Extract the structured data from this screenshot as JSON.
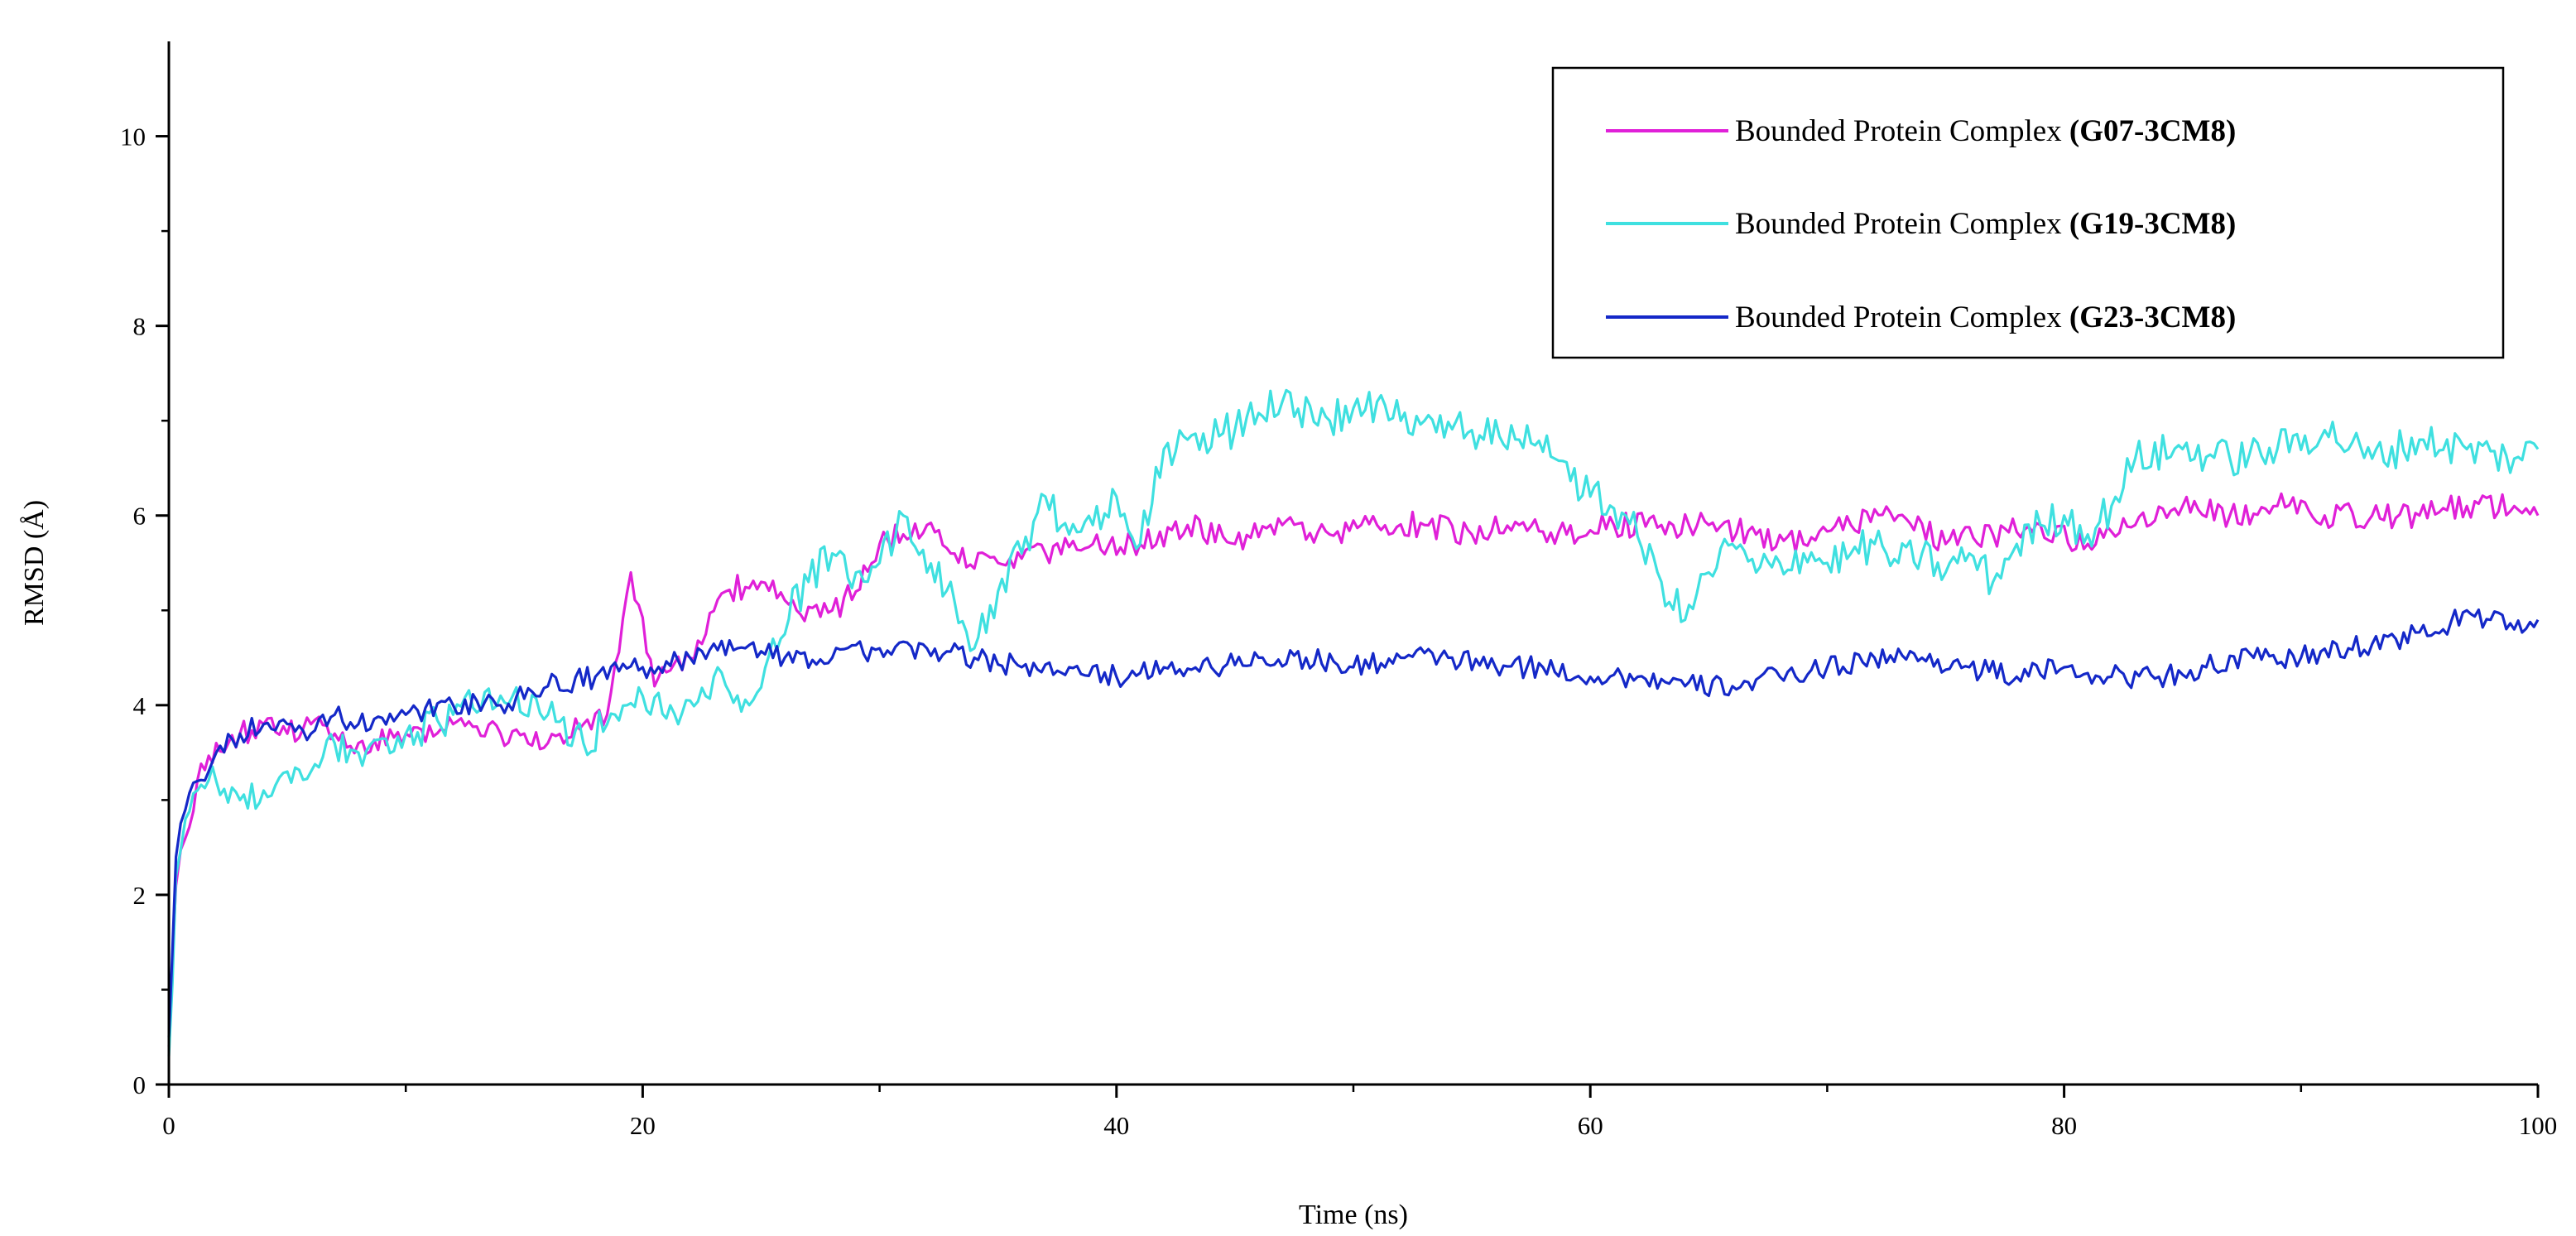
{
  "chart_data": {
    "type": "line",
    "title": "",
    "xlabel": "Time (ns)",
    "ylabel": "RMSD (Å)",
    "xlim": [
      0,
      100
    ],
    "ylim": [
      0,
      11
    ],
    "x_ticks": [
      0,
      20,
      40,
      60,
      80,
      100
    ],
    "y_ticks": [
      0,
      2,
      4,
      6,
      8,
      10
    ],
    "legend_position": "top-right",
    "grid": false,
    "series": [
      {
        "name_prefix": "Bounded Protein Complex ",
        "name_bold": "(G07-3CM8)",
        "color": "#e020d8",
        "x": [
          0,
          0.3,
          0.7,
          1.2,
          2,
          3,
          4,
          5,
          6,
          7,
          8,
          10,
          12,
          14,
          16,
          17.5,
          18.5,
          19.5,
          20.5,
          22,
          23.5,
          25,
          26.5,
          28,
          29,
          30,
          31,
          32,
          33,
          35,
          37,
          39,
          41,
          43,
          45,
          47,
          49,
          51,
          53,
          55,
          57,
          59,
          61,
          63,
          65,
          67,
          69,
          71,
          73,
          75,
          77,
          79,
          81,
          83,
          85,
          87,
          89,
          91,
          93,
          95,
          97,
          99,
          100
        ],
        "values": [
          0.4,
          2.1,
          2.6,
          3.2,
          3.6,
          3.7,
          3.8,
          3.7,
          3.8,
          3.7,
          3.6,
          3.7,
          3.8,
          3.7,
          3.6,
          3.8,
          3.9,
          5.4,
          4.2,
          4.5,
          5.2,
          5.3,
          5.0,
          5.0,
          5.2,
          5.7,
          5.8,
          5.9,
          5.6,
          5.5,
          5.6,
          5.7,
          5.7,
          5.9,
          5.7,
          5.9,
          5.8,
          5.9,
          5.9,
          5.8,
          5.9,
          5.8,
          5.9,
          5.9,
          5.9,
          5.8,
          5.7,
          5.9,
          6.0,
          5.7,
          5.8,
          5.9,
          5.7,
          5.9,
          6.1,
          6.0,
          6.1,
          6.0,
          6.0,
          6.0,
          6.1,
          6.1,
          6.0
        ]
      },
      {
        "name_prefix": "Bounded Protein Complex ",
        "name_bold": "(G19-3CM8)",
        "color": "#3fe0e0",
        "x": [
          0,
          0.3,
          0.7,
          1.2,
          2,
          3,
          4,
          5,
          6,
          7,
          8,
          10,
          12,
          14,
          16,
          17.5,
          18.5,
          20,
          21.5,
          23,
          24.5,
          25.5,
          27,
          28,
          29,
          30,
          31,
          32,
          33,
          34,
          35,
          36,
          37,
          38,
          39,
          40,
          41,
          42,
          43,
          45,
          47,
          49,
          51,
          53,
          55,
          57,
          58.5,
          60,
          61.5,
          63,
          64,
          65,
          66,
          67,
          68,
          69,
          70,
          71,
          72,
          73,
          74,
          75,
          76,
          77,
          78,
          79,
          80,
          81,
          82,
          83,
          85,
          87,
          89,
          91,
          93,
          95,
          97,
          99,
          100
        ],
        "values": [
          0.3,
          2.2,
          2.8,
          3.1,
          3.2,
          3.0,
          3.1,
          3.3,
          3.3,
          3.6,
          3.5,
          3.7,
          3.9,
          4.1,
          3.9,
          3.6,
          3.8,
          4.1,
          3.8,
          4.3,
          4.0,
          4.7,
          5.3,
          5.6,
          5.4,
          5.5,
          6.0,
          5.4,
          5.3,
          4.6,
          5.2,
          5.6,
          6.2,
          5.8,
          5.9,
          6.2,
          5.7,
          6.7,
          6.8,
          6.9,
          7.2,
          7.0,
          7.2,
          7.0,
          6.9,
          6.8,
          6.6,
          6.2,
          6.0,
          5.3,
          4.9,
          5.4,
          5.7,
          5.4,
          5.5,
          5.6,
          5.5,
          5.6,
          5.7,
          5.5,
          5.6,
          5.4,
          5.6,
          5.3,
          5.7,
          5.9,
          6.0,
          5.8,
          6.1,
          6.6,
          6.7,
          6.6,
          6.7,
          6.9,
          6.6,
          6.8,
          6.7,
          6.6,
          6.7
        ]
      },
      {
        "name_prefix": "Bounded Protein Complex ",
        "name_bold": "(G23-3CM8)",
        "color": "#1428c8",
        "x": [
          0,
          0.3,
          0.7,
          1.2,
          2,
          3,
          4,
          5,
          6,
          7,
          8,
          10,
          12,
          14,
          16,
          18,
          20,
          22,
          24,
          26,
          28,
          30,
          32,
          34,
          36,
          38,
          40,
          42,
          44,
          46,
          48,
          50,
          52,
          54,
          56,
          58,
          60,
          62,
          64,
          66,
          68,
          70,
          72,
          74,
          76,
          78,
          80,
          82,
          84,
          86,
          88,
          90,
          92,
          94,
          96,
          97,
          98,
          99,
          100
        ],
        "values": [
          0.5,
          2.4,
          2.9,
          3.2,
          3.5,
          3.7,
          3.8,
          3.8,
          3.7,
          3.9,
          3.8,
          3.9,
          4.0,
          4.0,
          4.2,
          4.3,
          4.4,
          4.5,
          4.6,
          4.5,
          4.5,
          4.6,
          4.6,
          4.5,
          4.4,
          4.4,
          4.3,
          4.4,
          4.4,
          4.5,
          4.5,
          4.4,
          4.5,
          4.5,
          4.4,
          4.4,
          4.3,
          4.3,
          4.2,
          4.2,
          4.3,
          4.4,
          4.5,
          4.5,
          4.4,
          4.3,
          4.4,
          4.3,
          4.3,
          4.4,
          4.5,
          4.5,
          4.6,
          4.7,
          4.8,
          5.0,
          4.9,
          4.8,
          4.9
        ]
      }
    ]
  }
}
